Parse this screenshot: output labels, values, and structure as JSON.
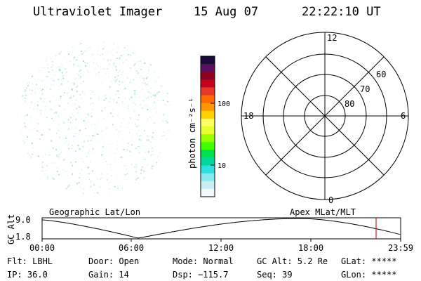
{
  "header": {
    "instrument": "Ultraviolet Imager",
    "date": "15 Aug 07",
    "time": "22:22:10 UT"
  },
  "colorbar": {
    "unit_label": "photon cm⁻²s⁻¹",
    "ticks": [
      "100",
      "10"
    ],
    "colors": [
      "#1c0a3a",
      "#5a1060",
      "#8e0020",
      "#c80020",
      "#e6382a",
      "#ff6a00",
      "#ff9800",
      "#ffcf00",
      "#ffff66",
      "#e8ff30",
      "#9cff00",
      "#40ff00",
      "#00e050",
      "#00d8a0",
      "#30e0e0",
      "#8ce8f0",
      "#c8f0f4",
      "#f4fafc"
    ]
  },
  "polar_plot": {
    "clock_labels": [
      "12",
      "18",
      "6",
      "0"
    ],
    "lat_labels": [
      "60",
      "70",
      "80"
    ]
  },
  "timeline": {
    "left_title": "Geographic Lat/Lon",
    "right_title": "Apex MLat/MLT",
    "axis_label": "GC Alt",
    "y_labels": [
      "9.0",
      "1.8"
    ],
    "x_labels": [
      "00:00",
      "06:00",
      "12:00",
      "18:00",
      "23:59"
    ],
    "marker_color": "#cc2222"
  },
  "status": {
    "flt": "Flt: LBHL",
    "ip": "IP: 36.0",
    "door": "Door: Open",
    "gain": "Gain: 14",
    "mode": "Mode: Normal",
    "dsp": "Dsp: −115.7",
    "gcalt": "GC Alt: 5.2 Re",
    "seq": "Seq: 39",
    "glat": "GLat: *****",
    "glon": "GLon: *****"
  }
}
